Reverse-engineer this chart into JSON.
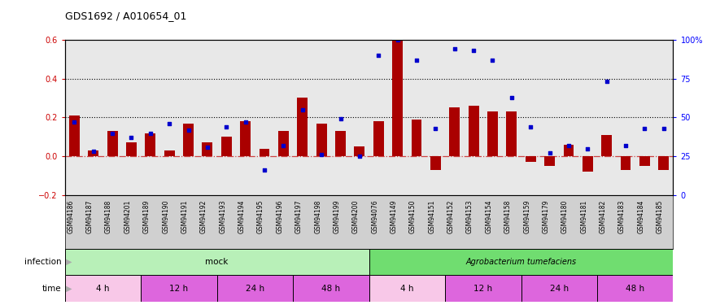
{
  "title": "GDS1692 / A010654_01",
  "samples": [
    "GSM94186",
    "GSM94187",
    "GSM94188",
    "GSM94201",
    "GSM94189",
    "GSM94190",
    "GSM94191",
    "GSM94192",
    "GSM94193",
    "GSM94194",
    "GSM94195",
    "GSM94196",
    "GSM94197",
    "GSM94198",
    "GSM94199",
    "GSM94200",
    "GSM94076",
    "GSM94149",
    "GSM94150",
    "GSM94151",
    "GSM94152",
    "GSM94153",
    "GSM94154",
    "GSM94158",
    "GSM94159",
    "GSM94179",
    "GSM94180",
    "GSM94181",
    "GSM94182",
    "GSM94183",
    "GSM94184",
    "GSM94185"
  ],
  "log2_ratio": [
    0.21,
    0.03,
    0.13,
    0.07,
    0.12,
    0.03,
    0.17,
    0.07,
    0.1,
    0.18,
    0.04,
    0.13,
    0.3,
    0.17,
    0.13,
    0.05,
    0.18,
    0.62,
    0.19,
    -0.07,
    0.25,
    0.26,
    0.23,
    0.23,
    -0.03,
    -0.05,
    0.06,
    -0.08,
    0.11,
    -0.07,
    -0.05,
    -0.07
  ],
  "percentile": [
    47,
    28,
    40,
    37,
    40,
    46,
    42,
    31,
    44,
    47,
    16,
    32,
    55,
    26,
    49,
    25,
    90,
    100,
    87,
    43,
    94,
    93,
    87,
    63,
    44,
    27,
    32,
    30,
    73,
    32,
    43,
    43
  ],
  "bar_color": "#aa0000",
  "scatter_color": "#0000cc",
  "ylim_left": [
    -0.2,
    0.6
  ],
  "ylim_right": [
    0,
    100
  ],
  "yticks_left": [
    -0.2,
    0.0,
    0.2,
    0.4,
    0.6
  ],
  "yticks_right": [
    0,
    25,
    50,
    75,
    100
  ],
  "hlines": [
    0.2,
    0.4
  ],
  "sample_bg_color": "#d0d0d0",
  "mock_color": "#b0f0b0",
  "agro_color": "#70dd70",
  "time_color_4h": "#f8c8e8",
  "time_color_12h": "#e878e8",
  "time_color_24h": "#e878e8",
  "time_color_48h": "#e878e8",
  "infection_labels": [
    "mock",
    "Agrobacterium tumefaciens"
  ],
  "infection_ranges": [
    [
      0,
      16
    ],
    [
      16,
      32
    ]
  ],
  "time_labels": [
    "4 h",
    "12 h",
    "24 h",
    "48 h",
    "4 h",
    "12 h",
    "24 h",
    "48 h"
  ],
  "time_ranges": [
    [
      0,
      4
    ],
    [
      4,
      8
    ],
    [
      8,
      12
    ],
    [
      12,
      16
    ],
    [
      16,
      20
    ],
    [
      20,
      24
    ],
    [
      24,
      28
    ],
    [
      28,
      32
    ]
  ],
  "time_colors": [
    "#f8c8e8",
    "#dd66dd",
    "#dd66dd",
    "#dd66dd",
    "#f8c8e8",
    "#dd66dd",
    "#dd66dd",
    "#dd66dd"
  ]
}
